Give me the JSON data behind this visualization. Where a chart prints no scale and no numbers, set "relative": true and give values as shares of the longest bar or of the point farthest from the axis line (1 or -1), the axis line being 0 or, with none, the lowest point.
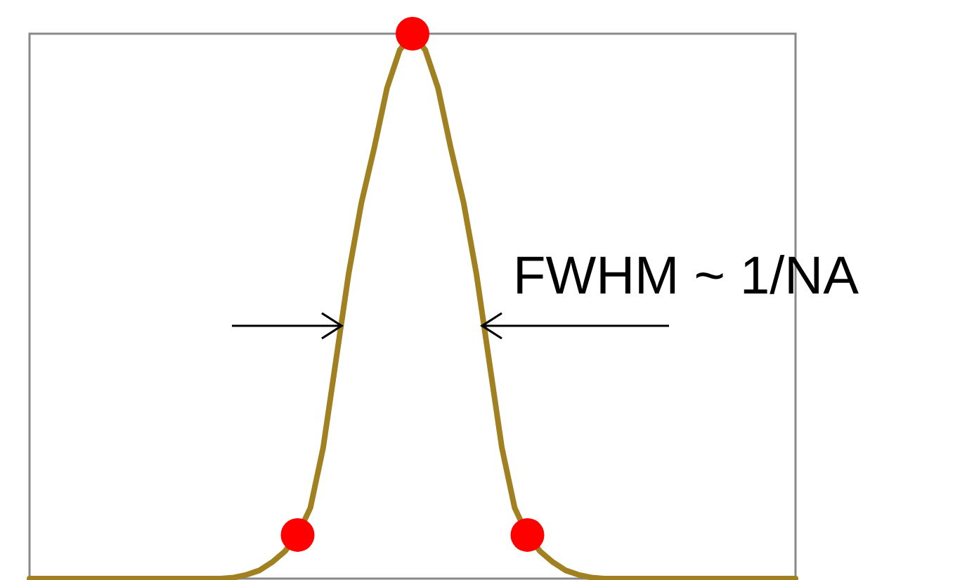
{
  "chart_data": {
    "type": "line",
    "relative": true,
    "categories": [
      null,
      null,
      null,
      null,
      null,
      null,
      null,
      null,
      null,
      null,
      null,
      null,
      null,
      null,
      null,
      null,
      null,
      null,
      null,
      null,
      null,
      null,
      null,
      null,
      null,
      null,
      null,
      null,
      null,
      null,
      null,
      null,
      null,
      null,
      null,
      null,
      null,
      null,
      null,
      null,
      null,
      null,
      null,
      null,
      null,
      null,
      null,
      null,
      null,
      null,
      null,
      null,
      null,
      null,
      null,
      null,
      null,
      null,
      null,
      null,
      null
    ],
    "tick_labels": false,
    "series": [
      {
        "color": "#a08020",
        "values": [
          0,
          0,
          0,
          0,
          0,
          0,
          0,
          0,
          0,
          0,
          0,
          0,
          0,
          0,
          0,
          0,
          0.002,
          0.007,
          0.015,
          0.03,
          0.05,
          0.08,
          0.13,
          0.24,
          0.4,
          0.56,
          0.69,
          0.79,
          0.9,
          0.97,
          1,
          0.97,
          0.9,
          0.79,
          0.69,
          0.56,
          0.4,
          0.24,
          0.13,
          0.08,
          0.05,
          0.03,
          0.015,
          0.007,
          0.002,
          0,
          0,
          0,
          0,
          0,
          0,
          0,
          0,
          0,
          0,
          0,
          0,
          0,
          0,
          0,
          0
        ]
      }
    ],
    "annotations": [
      "FWHM ~ 1/NA"
    ]
  }
}
